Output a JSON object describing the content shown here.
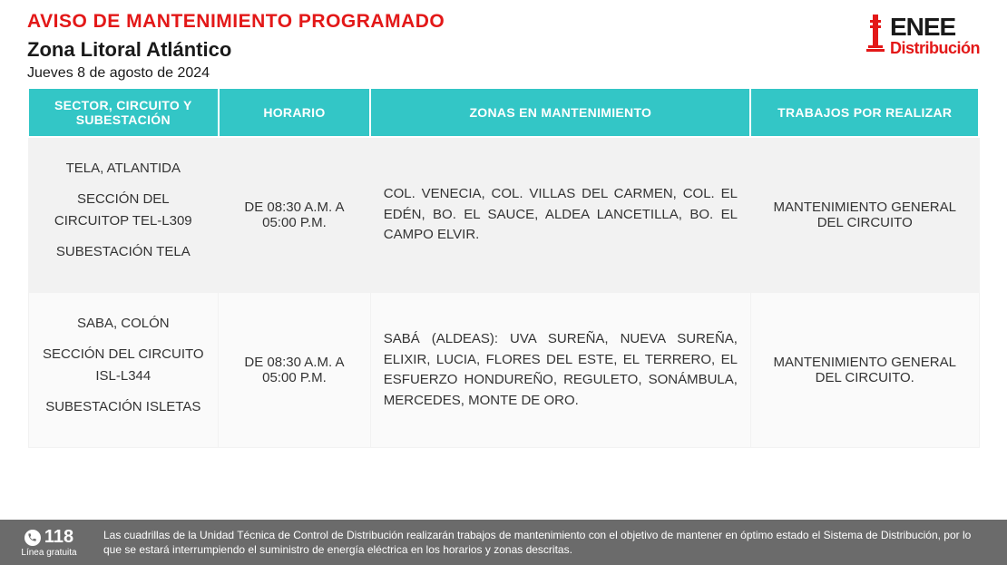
{
  "header": {
    "notice_title": "AVISO DE MANTENIMIENTO PROGRAMADO",
    "zone_title": "Zona Litoral Atlántico",
    "date": "Jueves 8 de agosto de 2024"
  },
  "logo": {
    "main": "ENEE",
    "sub": "Distribución",
    "main_color": "#1a1a1a",
    "sub_color": "#e31818"
  },
  "table": {
    "header_bg": "#33c6c6",
    "header_fg": "#ffffff",
    "col_widths": [
      "20%",
      "16%",
      "40%",
      "24%"
    ],
    "columns": [
      "SECTOR, CIRCUITO Y SUBESTACIÓN",
      "HORARIO",
      "ZONAS EN MANTENIMIENTO",
      "TRABAJOS POR REALIZAR"
    ],
    "rows": [
      {
        "sector_lines": [
          "TELA, ATLANTIDA",
          "SECCIÓN DEL CIRCUITOP TEL-L309",
          "SUBESTACIÓN TELA"
        ],
        "horario": "DE 08:30 A.M. A 05:00 P.M.",
        "zones": "COL. VENECIA, COL. VILLAS DEL CARMEN, COL. EL EDÉN, BO. EL SAUCE, ALDEA LANCETILLA, BO. EL CAMPO ELVIR.",
        "work": "MANTENIMIENTO GENERAL DEL CIRCUITO"
      },
      {
        "sector_lines": [
          "SABA, COLÓN",
          "SECCIÓN DEL CIRCUITO ISL-L344",
          "SUBESTACIÓN ISLETAS"
        ],
        "horario": "DE 08:30 A.M. A 05:00 P.M.",
        "zones": "SABÁ (ALDEAS): UVA SUREÑA, NUEVA SUREÑA, ELIXIR, LUCIA, FLORES DEL ESTE, EL TERRERO, EL ESFUERZO HONDUREÑO, REGULETO, SONÁMBULA, MERCEDES, MONTE DE ORO.",
        "work": "MANTENIMIENTO GENERAL DEL CIRCUITO."
      }
    ]
  },
  "footer": {
    "phone_number": "118",
    "phone_label": "Línea gratuita",
    "text": "Las cuadrillas de la Unidad Técnica de Control de Distribución realizarán trabajos de mantenimiento con el objetivo de mantener en óptimo estado el Sistema de Distribución, por lo que se estará interrumpiendo el suministro de energía eléctrica en los horarios y zonas descritas.",
    "bg": "#6b6b6b",
    "fg": "#ffffff"
  },
  "colors": {
    "accent_red": "#e31818",
    "header_teal": "#33c6c6",
    "row_alt1": "#f2f2f2",
    "row_alt2": "#fafafa",
    "text": "#333333"
  }
}
